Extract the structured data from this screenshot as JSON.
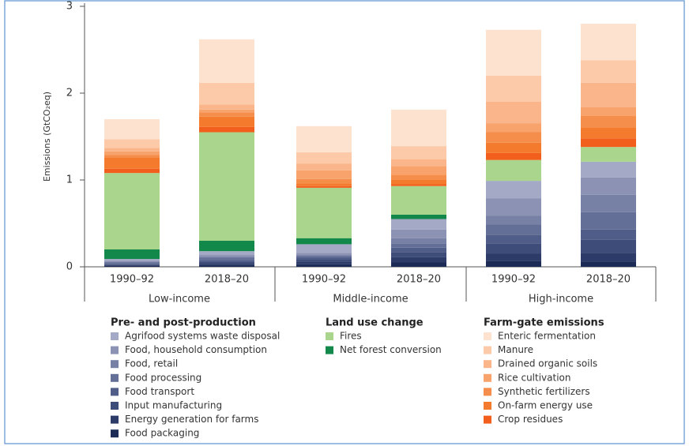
{
  "chart_data": {
    "type": "stacked_bar",
    "y_label": "Emissions (GtCO₂eq)",
    "categories": [
      "1990–92",
      "2018–20",
      "1990–92",
      "2018–20",
      "1990–92",
      "2018–20"
    ],
    "groups": [
      "Low-income",
      "Middle-income",
      "High-income"
    ],
    "ylim": [
      0,
      3
    ],
    "yticks": [
      0,
      1,
      2,
      3
    ],
    "legend_titles": [
      "Pre- and post-production",
      "Land use change",
      "Farm-gate emissions"
    ],
    "series": [
      {
        "name": "Food packaging",
        "color": "#1c2b55",
        "values": [
          0.01,
          0.02,
          0.03,
          0.05,
          0.07,
          0.06
        ]
      },
      {
        "name": "Energy generation for farms",
        "color": "#2c3b68",
        "values": [
          0.01,
          0.02,
          0.03,
          0.06,
          0.08,
          0.1
        ]
      },
      {
        "name": "Input manufacturing",
        "color": "#3d4c78",
        "values": [
          0.01,
          0.02,
          0.03,
          0.06,
          0.12,
          0.15
        ]
      },
      {
        "name": "Food transport",
        "color": "#505d88",
        "values": [
          0.01,
          0.02,
          0.02,
          0.05,
          0.1,
          0.12
        ]
      },
      {
        "name": "Food processing",
        "color": "#636f97",
        "values": [
          0.01,
          0.02,
          0.02,
          0.05,
          0.12,
          0.2
        ]
      },
      {
        "name": "Food, retail",
        "color": "#7780a5",
        "values": [
          0.01,
          0.02,
          0.01,
          0.06,
          0.1,
          0.2
        ]
      },
      {
        "name": "Food, household consumption",
        "color": "#8b92b3",
        "values": [
          0.01,
          0.02,
          0.02,
          0.1,
          0.2,
          0.2
        ]
      },
      {
        "name": "Agrifood systems waste disposal",
        "color": "#a4a9c6",
        "values": [
          0.02,
          0.04,
          0.1,
          0.12,
          0.2,
          0.18
        ]
      },
      {
        "name": "Net forest conversion",
        "color": "#12894a",
        "values": [
          0.11,
          0.12,
          0.07,
          0.05,
          0,
          0
        ]
      },
      {
        "name": "Fires",
        "color": "#a9d68c",
        "values": [
          0.88,
          1.25,
          0.58,
          0.33,
          0.24,
          0.17
        ]
      },
      {
        "name": "Crop residues",
        "color": "#f25f1c",
        "values": [
          0.05,
          0.06,
          0.02,
          0.02,
          0.08,
          0.1
        ]
      },
      {
        "name": "On-farm energy use",
        "color": "#f47a2e",
        "values": [
          0.13,
          0.12,
          0.03,
          0.05,
          0.12,
          0.12
        ]
      },
      {
        "name": "Synthetic fertilizers",
        "color": "#f68e4b",
        "values": [
          0.03,
          0.05,
          0.05,
          0.06,
          0.12,
          0.14
        ]
      },
      {
        "name": "Rice cultivation",
        "color": "#f8a36b",
        "values": [
          0.04,
          0.03,
          0.1,
          0.1,
          0.1,
          0.1
        ]
      },
      {
        "name": "Drained organic soils",
        "color": "#fab68a",
        "values": [
          0.04,
          0.06,
          0.08,
          0.08,
          0.25,
          0.28
        ]
      },
      {
        "name": "Manure",
        "color": "#fccaa8",
        "values": [
          0.1,
          0.25,
          0.13,
          0.15,
          0.3,
          0.26
        ]
      },
      {
        "name": "Enteric fermentation",
        "color": "#fde2d0",
        "values": [
          0.23,
          0.5,
          0.3,
          0.42,
          0.53,
          0.42
        ]
      }
    ]
  }
}
